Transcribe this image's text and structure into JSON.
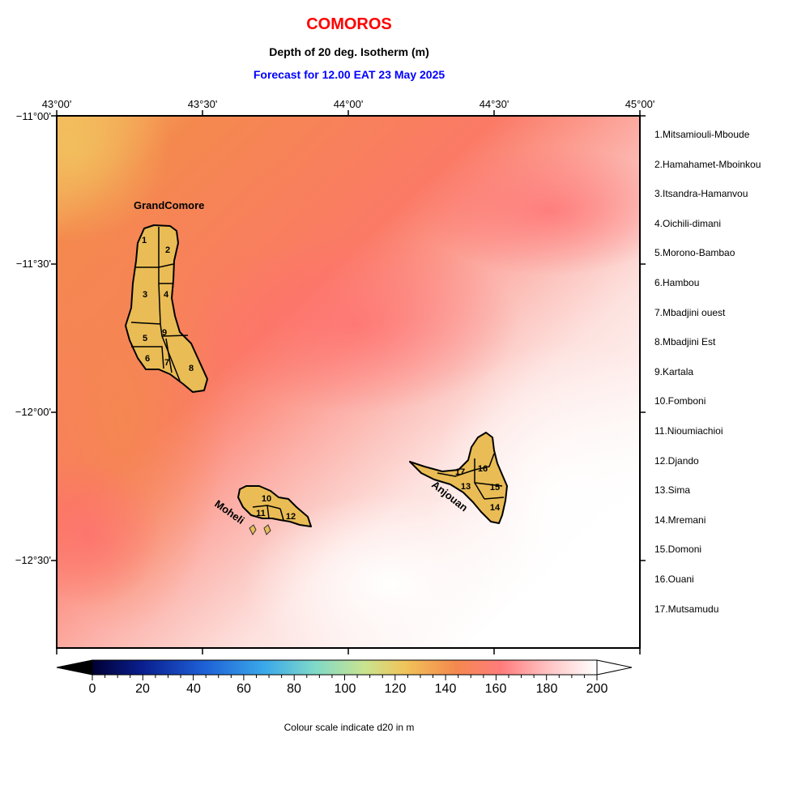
{
  "title": "COMOROS",
  "subtitle": "Depth of 20 deg. Isotherm (m)",
  "forecast": "Forecast for  12.00 EAT 23 May 2025",
  "lon_labels": [
    "43°00'",
    "43°30'",
    "44°00'",
    "44°30'",
    "45°00'"
  ],
  "lat_labels": [
    "−11°00'",
    "−11°30'",
    "−12°00'",
    "−12°30'"
  ],
  "islands": {
    "grande_comore": "GrandComore",
    "moheli": "Moheli",
    "anjouan": "Anjouan"
  },
  "district_numbers": [
    "1",
    "2",
    "3",
    "4",
    "5",
    "6",
    "7",
    "8",
    "9",
    "10",
    "11",
    "12",
    "13",
    "14",
    "15",
    "16",
    "17"
  ],
  "legend": [
    "1.Mitsamiouli-Mboude",
    "2.Hamahamet-Mboinkou",
    "3.Itsandra-Hamanvou",
    "4.Oichili-dimani",
    "5.Morono-Bambao",
    "6.Hambou",
    "7.Mbadjini ouest",
    "8.Mbadjini Est",
    "9.Kartala",
    "10.Fomboni",
    "11.Nioumiachioi",
    "12.Djando",
    "13.Sima",
    "14.Mremani",
    "15.Domoni",
    "16.Ouani",
    "17.Mutsamudu"
  ],
  "colorbar": {
    "ticks": [
      "0",
      "20",
      "40",
      "60",
      "80",
      "100",
      "120",
      "140",
      "160",
      "180",
      "200"
    ],
    "caption": "Colour scale indicate d20 in m",
    "min": 0,
    "max": 200,
    "colors": [
      "#000033",
      "#0a1f8f",
      "#1e5fd6",
      "#3aa8ea",
      "#7fd9c9",
      "#c9e48f",
      "#f0c45a",
      "#f4894e",
      "#ff7c7c",
      "#ffc8c8",
      "#ffffff"
    ]
  },
  "colors": {
    "title": "#ff0000",
    "forecast": "#0000ff",
    "land": "#e9bc55"
  }
}
